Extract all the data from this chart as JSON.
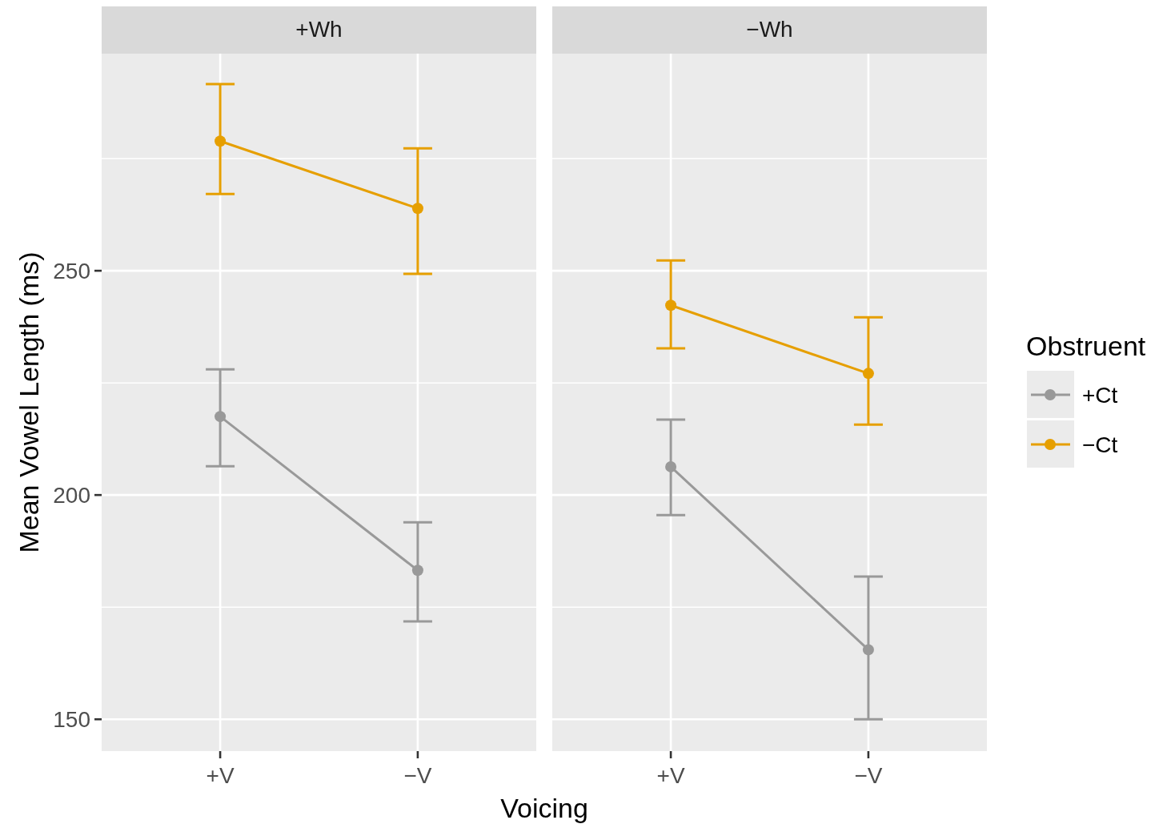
{
  "chart_data": [
    {
      "type": "line",
      "title": "+Wh",
      "xlabel": "Voicing",
      "ylabel": "Mean Vowel Length (ms)",
      "categories": [
        "+V",
        "−V"
      ],
      "ylim": [
        142.9,
        298.4
      ],
      "yticks": [
        150,
        {
          "value": 175,
          "label": null
        },
        200,
        {
          "value": 225,
          "label": null
        },
        250,
        {
          "value": 275,
          "label": null
        }
      ],
      "grid": true,
      "marker": "circle",
      "line_style": "solid",
      "legend_title": "Obstruent",
      "legend": "right",
      "tick_labels": true,
      "series": [
        {
          "name": "+Ct",
          "color": "#999999",
          "values": [
            217.5,
            183.2
          ],
          "errors": [
            [
              206.4,
              228.0
            ],
            [
              171.8,
              193.9
            ]
          ]
        },
        {
          "name": "−Ct",
          "color": "#e69f00",
          "values": [
            278.9,
            263.9
          ],
          "errors": [
            [
              267.1,
              291.6
            ],
            [
              249.3,
              277.3
            ]
          ]
        }
      ]
    },
    {
      "type": "line",
      "title": "−Wh",
      "categories": [
        "+V",
        "−V"
      ],
      "ylim": [
        142.9,
        298.4
      ],
      "yticks": [
        150,
        {
          "value": 175,
          "label": null
        },
        200,
        {
          "value": 225,
          "label": null
        },
        250,
        {
          "value": 275,
          "label": null
        }
      ],
      "grid": true,
      "marker": "circle",
      "line_style": "solid",
      "tick_labels": "x",
      "series": [
        {
          "color": "#999999",
          "values": [
            206.3,
            165.5
          ],
          "errors": [
            [
              195.5,
              216.8
            ],
            [
              150.0,
              181.8
            ]
          ]
        },
        {
          "color": "#e69f00",
          "values": [
            242.3,
            227.1
          ],
          "errors": [
            [
              232.7,
              252.3
            ],
            [
              215.7,
              239.6
            ]
          ]
        }
      ]
    }
  ]
}
